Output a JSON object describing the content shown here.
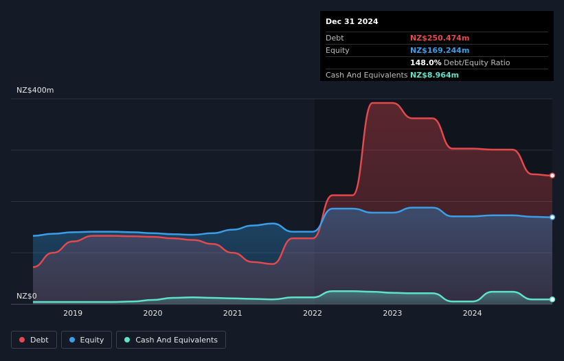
{
  "tooltip": {
    "date": "Dec 31 2024",
    "rows": [
      {
        "label": "Debt",
        "value": "NZ$250.474m",
        "color": "#e5484d"
      },
      {
        "label": "Equity",
        "value": "NZ$169.244m",
        "color": "#3b9ee8"
      },
      {
        "label": "",
        "value": "148.0%",
        "suffix": "Debt/Equity Ratio"
      },
      {
        "label": "Cash And Equivalents",
        "value": "NZ$8.964m",
        "color": "#5fe3c8"
      }
    ]
  },
  "legend": [
    {
      "label": "Debt",
      "color": "#e5484d"
    },
    {
      "label": "Equity",
      "color": "#3b9ee8"
    },
    {
      "label": "Cash And Equivalents",
      "color": "#5fe3c8"
    }
  ],
  "chart_data": {
    "type": "area",
    "ylim": [
      0,
      400
    ],
    "xlim": [
      2018.5,
      2025.0
    ],
    "y_tick_labels": [
      {
        "value": 400,
        "label": "NZ$400m"
      },
      {
        "value": 0,
        "label": "NZ$0"
      }
    ],
    "gridlines": [
      0,
      100,
      200,
      300,
      400
    ],
    "x_ticks": [
      {
        "value": 2019,
        "label": "2019"
      },
      {
        "value": 2020,
        "label": "2020"
      },
      {
        "value": 2021,
        "label": "2021"
      },
      {
        "value": 2022,
        "label": "2022"
      },
      {
        "value": 2023,
        "label": "2023"
      },
      {
        "value": 2024,
        "label": "2024"
      }
    ],
    "series": [
      {
        "name": "Debt",
        "color": "#e5484d",
        "points": [
          [
            2018.5,
            72
          ],
          [
            2018.75,
            100
          ],
          [
            2019.0,
            122
          ],
          [
            2019.25,
            133
          ],
          [
            2019.5,
            133
          ],
          [
            2019.75,
            132
          ],
          [
            2020.0,
            131
          ],
          [
            2020.25,
            128
          ],
          [
            2020.5,
            125
          ],
          [
            2020.75,
            117
          ],
          [
            2021.0,
            100
          ],
          [
            2021.25,
            82
          ],
          [
            2021.5,
            78
          ],
          [
            2021.75,
            128
          ],
          [
            2022.0,
            128
          ],
          [
            2022.25,
            212
          ],
          [
            2022.5,
            212
          ],
          [
            2022.75,
            392
          ],
          [
            2023.0,
            392
          ],
          [
            2023.25,
            362
          ],
          [
            2023.5,
            362
          ],
          [
            2023.75,
            303
          ],
          [
            2024.0,
            303
          ],
          [
            2024.25,
            301
          ],
          [
            2024.5,
            301
          ],
          [
            2024.75,
            253
          ],
          [
            2025.0,
            250.474
          ]
        ]
      },
      {
        "name": "Equity",
        "color": "#3b9ee8",
        "points": [
          [
            2018.5,
            133
          ],
          [
            2018.75,
            137
          ],
          [
            2019.0,
            140
          ],
          [
            2019.25,
            141
          ],
          [
            2019.5,
            141
          ],
          [
            2019.75,
            140
          ],
          [
            2020.0,
            138
          ],
          [
            2020.25,
            136
          ],
          [
            2020.5,
            135
          ],
          [
            2020.75,
            138
          ],
          [
            2021.0,
            145
          ],
          [
            2021.25,
            153
          ],
          [
            2021.5,
            157
          ],
          [
            2021.75,
            141
          ],
          [
            2022.0,
            141
          ],
          [
            2022.25,
            186
          ],
          [
            2022.5,
            186
          ],
          [
            2022.75,
            178
          ],
          [
            2023.0,
            178
          ],
          [
            2023.25,
            188
          ],
          [
            2023.5,
            188
          ],
          [
            2023.75,
            171
          ],
          [
            2024.0,
            171
          ],
          [
            2024.25,
            173
          ],
          [
            2024.5,
            173
          ],
          [
            2024.75,
            170
          ],
          [
            2025.0,
            169.244
          ]
        ]
      },
      {
        "name": "Cash And Equivalents",
        "color": "#5fe3c8",
        "points": [
          [
            2018.5,
            4
          ],
          [
            2018.75,
            4
          ],
          [
            2019.0,
            4
          ],
          [
            2019.25,
            4
          ],
          [
            2019.5,
            4
          ],
          [
            2019.75,
            5
          ],
          [
            2020.0,
            8
          ],
          [
            2020.25,
            12
          ],
          [
            2020.5,
            13
          ],
          [
            2020.75,
            12
          ],
          [
            2021.0,
            11
          ],
          [
            2021.25,
            10
          ],
          [
            2021.5,
            9
          ],
          [
            2021.75,
            13
          ],
          [
            2022.0,
            13
          ],
          [
            2022.25,
            25
          ],
          [
            2022.5,
            25
          ],
          [
            2022.75,
            24
          ],
          [
            2023.0,
            22
          ],
          [
            2023.25,
            21
          ],
          [
            2023.5,
            21
          ],
          [
            2023.75,
            5
          ],
          [
            2024.0,
            5
          ],
          [
            2024.25,
            24
          ],
          [
            2024.5,
            24
          ],
          [
            2024.75,
            9
          ],
          [
            2025.0,
            8.964
          ]
        ]
      }
    ]
  }
}
